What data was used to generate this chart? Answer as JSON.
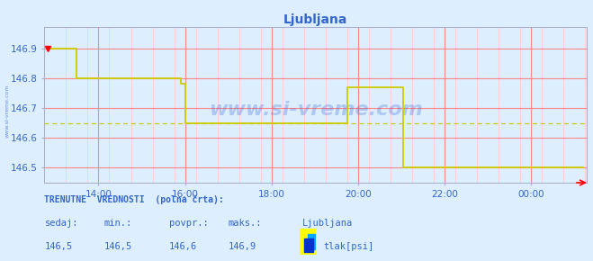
{
  "title": "Ljubljana",
  "bg_color": "#ddeeff",
  "plot_bg_color": "#ddeeff",
  "line_color": "#cccc00",
  "avg_line_color": "#cccc00",
  "grid_color_major": "#ff8888",
  "grid_color_minor": "#ffcccc",
  "axis_color": "#aaaaaa",
  "text_color": "#3366cc",
  "title_color": "#3366cc",
  "watermark": "www.si-vreme.com",
  "watermark_color": "#3366cc",
  "xmin": 12.75,
  "xmax": 25.3,
  "ymin": 146.45,
  "ymax": 146.97,
  "yticks": [
    146.5,
    146.6,
    146.7,
    146.8,
    146.9
  ],
  "xticks": [
    14,
    16,
    18,
    20,
    22,
    24
  ],
  "xtick_labels": [
    "14:00",
    "16:00",
    "18:00",
    "20:00",
    "22:00",
    "00:00"
  ],
  "avg_value": 146.65,
  "series_times": [
    12.83,
    12.84,
    13.5,
    14.0,
    14.5,
    15.0,
    15.5,
    15.85,
    15.9,
    16.0,
    16.1,
    17.0,
    18.0,
    18.5,
    19.0,
    19.5,
    19.75,
    19.76,
    20.0,
    20.5,
    21.0,
    21.05,
    21.1,
    21.5,
    22.0,
    22.5,
    23.0,
    23.5,
    24.0,
    24.5,
    25.2
  ],
  "series_values": [
    146.9,
    146.9,
    146.8,
    146.8,
    146.8,
    146.8,
    146.8,
    146.8,
    146.78,
    146.65,
    146.65,
    146.65,
    146.65,
    146.65,
    146.65,
    146.65,
    146.65,
    146.77,
    146.77,
    146.77,
    146.77,
    146.5,
    146.5,
    146.5,
    146.5,
    146.5,
    146.5,
    146.5,
    146.5,
    146.5,
    146.5
  ],
  "bottom_line1": "TRENUTNE  VREDNOSTI  (polna črta):",
  "bottom_col_labels": [
    "sedaj:",
    "min.:",
    "povpr.:",
    "maks.:"
  ],
  "bottom_col_values": [
    "146,5",
    "146,5",
    "146,6",
    "146,9"
  ],
  "legend_station": "Ljubljana",
  "legend_unit": "tlak[psi]",
  "legend_swatch_yellow": "#ffff00",
  "legend_swatch_cyan": "#00aaff",
  "legend_swatch_blue": "#0033cc"
}
